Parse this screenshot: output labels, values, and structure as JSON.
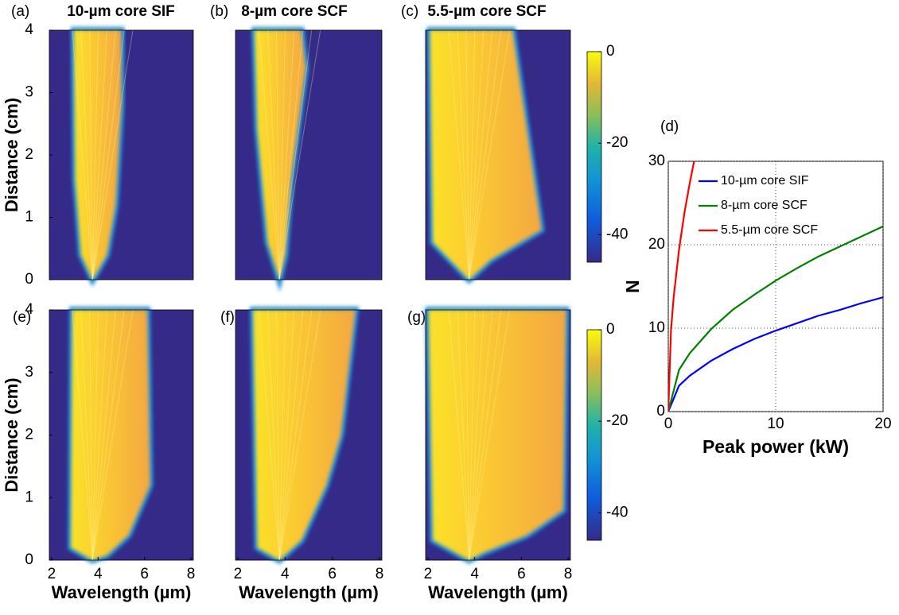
{
  "chart_data": [
    {
      "type": "heatmap",
      "panel_label": "(a)",
      "title": "10-µm core SIF",
      "ylabel": "Distance (cm)",
      "xlim": [
        1.9,
        8.1
      ],
      "ylim": [
        0,
        4
      ],
      "yticks": [
        0,
        1,
        2,
        3,
        4
      ]
    },
    {
      "type": "heatmap",
      "panel_label": "(b)",
      "title": "8-µm core SCF",
      "xlim": [
        1.9,
        8.1
      ],
      "ylim": [
        0,
        4
      ]
    },
    {
      "type": "heatmap",
      "panel_label": "(c)",
      "title": "5.5-µm core SCF",
      "xlim": [
        1.9,
        8.1
      ],
      "ylim": [
        0,
        4
      ]
    },
    {
      "type": "colorbar",
      "ylim": [
        -46,
        0
      ],
      "yticks": [
        0,
        -20,
        -40
      ]
    },
    {
      "type": "heatmap",
      "panel_label": "(e)",
      "ylabel": "Distance (cm)",
      "xlabel": "Wavelength (µm)",
      "xlim": [
        1.9,
        8.1
      ],
      "ylim": [
        0,
        4
      ],
      "xticks": [
        2,
        4,
        6,
        8
      ],
      "yticks": [
        0,
        1,
        2,
        3,
        4
      ]
    },
    {
      "type": "heatmap",
      "panel_label": "(f)",
      "xlabel": "Wavelength (µm)",
      "xlim": [
        1.9,
        8.1
      ],
      "ylim": [
        0,
        4
      ],
      "xticks": [
        2,
        4,
        6,
        8
      ]
    },
    {
      "type": "heatmap",
      "panel_label": "(g)",
      "xlabel": "Wavelength (µm)",
      "xlim": [
        1.9,
        8.1
      ],
      "ylim": [
        0,
        4
      ],
      "xticks": [
        2,
        4,
        6,
        8
      ]
    },
    {
      "type": "colorbar",
      "ylim": [
        -46,
        0
      ],
      "yticks": [
        0,
        -20,
        -40
      ]
    },
    {
      "type": "line",
      "panel_label": "(d)",
      "xlabel": "Peak power (kW)",
      "ylabel": "N",
      "xlim": [
        0,
        20
      ],
      "ylim": [
        0,
        30
      ],
      "xticks": [
        0,
        10,
        20
      ],
      "yticks": [
        0,
        10,
        20,
        30
      ],
      "grid": true,
      "legend": "upper left",
      "series": [
        {
          "name": "10-µm core SIF",
          "color": "#0000ff",
          "x": [
            0,
            1,
            2,
            4,
            6,
            8,
            10,
            12,
            14,
            16,
            18,
            20
          ],
          "values": [
            0,
            3.1,
            4.3,
            6.1,
            7.5,
            8.7,
            9.7,
            10.6,
            11.5,
            12.2,
            13.0,
            13.7
          ]
        },
        {
          "name": "8-µm core SCF",
          "color": "#008000",
          "x": [
            0,
            1,
            2,
            4,
            6,
            8,
            10,
            12,
            14,
            16,
            18,
            20
          ],
          "values": [
            0,
            5.0,
            7.0,
            9.9,
            12.2,
            14.0,
            15.7,
            17.2,
            18.6,
            19.8,
            21.0,
            22.2
          ]
        },
        {
          "name": "5.5-µm core SCF",
          "color": "#ff0000",
          "x": [
            0,
            0.25,
            0.5,
            1,
            1.5,
            2,
            2.4
          ],
          "values": [
            0,
            9.7,
            13.7,
            19.4,
            23.8,
            27.4,
            30.0
          ]
        }
      ]
    }
  ]
}
